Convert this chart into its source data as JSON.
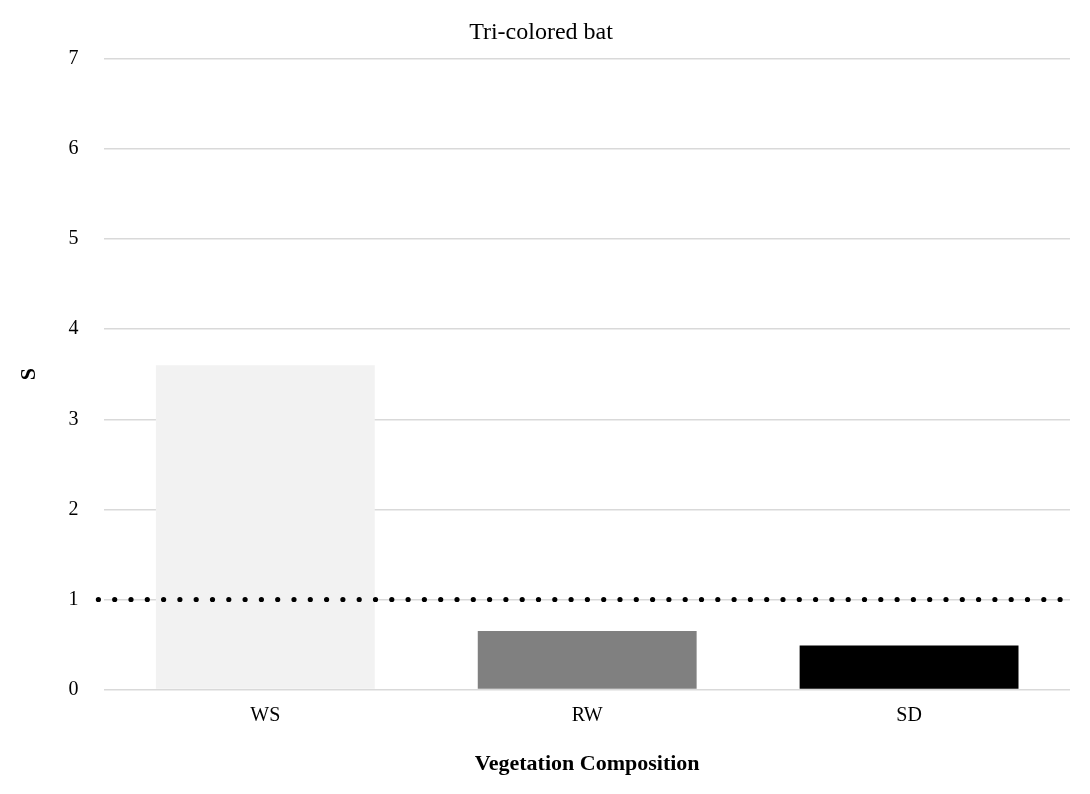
{
  "chart_data": {
    "type": "bar",
    "title": "Tri-colored bat",
    "xlabel": "Vegetation Composition",
    "ylabel": "S",
    "categories": [
      "WS",
      "RW",
      "SD"
    ],
    "values": [
      3.6,
      0.65,
      0.49
    ],
    "colors": [
      "#f2f2f2",
      "#808080",
      "#000000"
    ],
    "ylim": [
      0,
      7
    ],
    "yticks": [
      0,
      1,
      2,
      3,
      4,
      5,
      6,
      7
    ],
    "grid": "y",
    "legend": false,
    "ref_lines": [
      {
        "axis": "y",
        "value": 1,
        "color": "#000000",
        "line_style": "dotted"
      }
    ]
  }
}
